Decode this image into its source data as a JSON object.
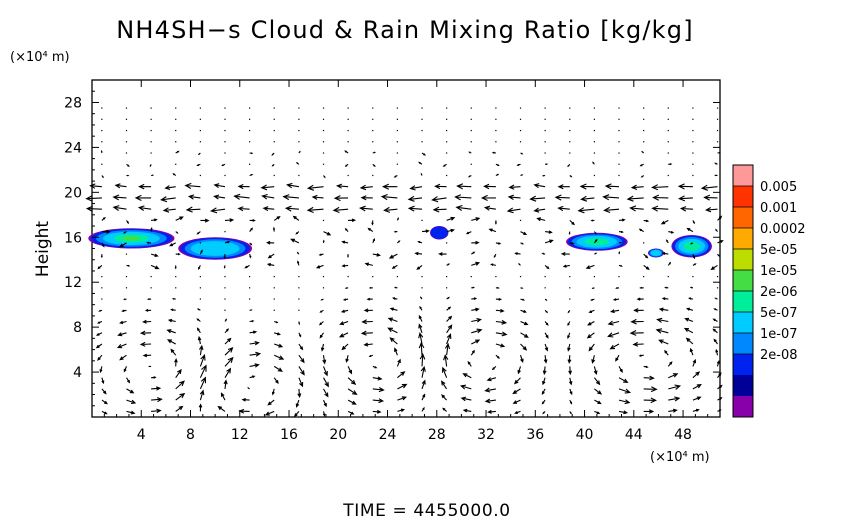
{
  "chart_data": {
    "type": "heatmap",
    "title": "NH4SH−s Cloud & Rain Mixing Ratio [kg/kg]",
    "ylabel": "Height",
    "y_unit": "(×10⁴ m)",
    "x_unit": "(×10⁴ m)",
    "xlim": [
      0,
      51
    ],
    "ylim": [
      0,
      30
    ],
    "x_ticks": [
      4,
      8,
      12,
      16,
      20,
      24,
      28,
      32,
      36,
      40,
      44,
      48
    ],
    "y_ticks": [
      4,
      8,
      12,
      16,
      20,
      24,
      28
    ],
    "x_tick_labels": [
      "4",
      "8",
      "12",
      "16",
      "20",
      "24",
      "28",
      "32",
      "36",
      "40",
      "44",
      "48"
    ],
    "y_tick_labels": [
      "4",
      "8",
      "12",
      "16",
      "20",
      "24",
      "28"
    ],
    "colorbar": {
      "labels": [
        "0.005",
        "0.001",
        "0.0002",
        "5e-05",
        "1e-05",
        "2e-06",
        "5e-07",
        "1e-07",
        "2e-08"
      ],
      "colors": [
        "#ff9999",
        "#ff3300",
        "#ff6600",
        "#ffaa00",
        "#bbdd00",
        "#44dd44",
        "#00ee99",
        "#00ccff",
        "#0088ff",
        "#0022ee",
        "#000099",
        "#8800aa"
      ]
    },
    "cloud_regions": [
      {
        "x_center": 3.2,
        "y_center": 15.9,
        "width": 7.0,
        "height": 1.8,
        "max_level": "1e-05"
      },
      {
        "x_center": 10.0,
        "y_center": 15.0,
        "width": 6.0,
        "height": 2.0,
        "max_level": "5e-07"
      },
      {
        "x_center": 28.2,
        "y_center": 16.4,
        "width": 1.5,
        "height": 1.2,
        "max_level": "1e-07"
      },
      {
        "x_center": 41.0,
        "y_center": 15.6,
        "width": 5.0,
        "height": 1.6,
        "max_level": "2e-06"
      },
      {
        "x_center": 45.8,
        "y_center": 14.6,
        "width": 1.3,
        "height": 0.8,
        "max_level": "5e-07"
      },
      {
        "x_center": 48.7,
        "y_center": 15.2,
        "width": 3.3,
        "height": 2.0,
        "max_level": "2e-06"
      }
    ],
    "time_label": "TIME = 4455000.0"
  }
}
